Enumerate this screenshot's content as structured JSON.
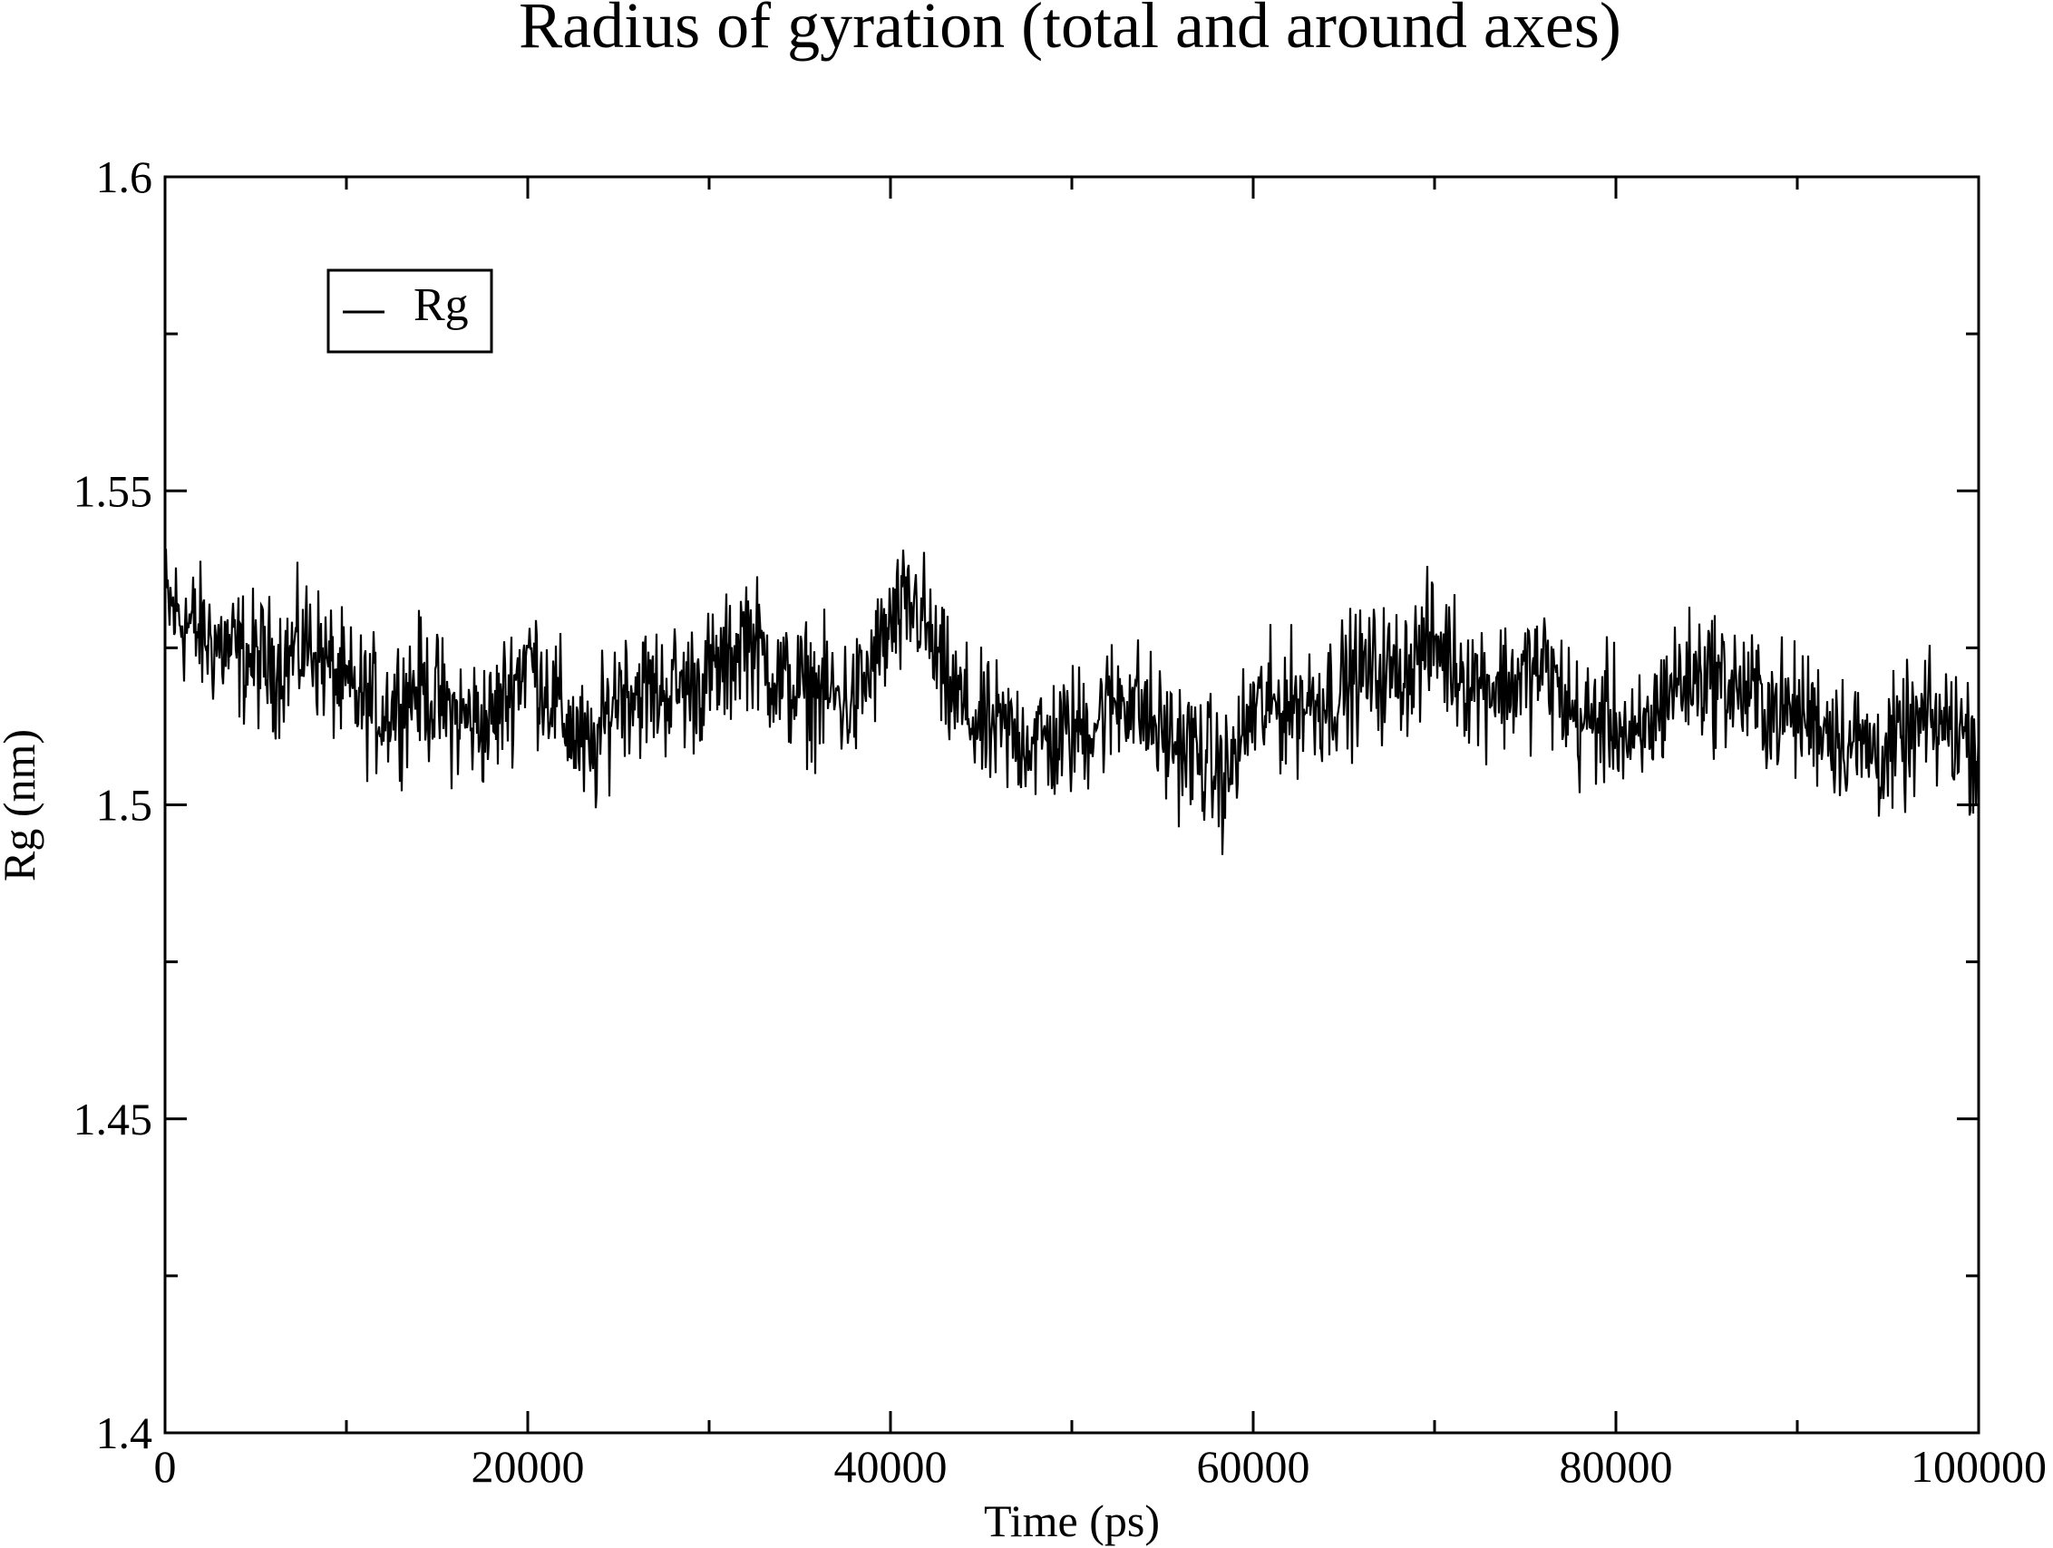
{
  "chart_data": {
    "type": "line",
    "title": "Radius of gyration (total and around axes)",
    "xlabel": "Time (ps)",
    "ylabel": "Rg (nm)",
    "xlim": [
      0,
      100000
    ],
    "ylim": [
      1.4,
      1.6
    ],
    "x_ticks": [
      0,
      20000,
      40000,
      60000,
      80000,
      100000
    ],
    "x_tick_labels": [
      "0",
      "20000",
      "40000",
      "60000",
      "80000",
      "100000"
    ],
    "x_minor_ticks": [
      10000,
      30000,
      50000,
      70000,
      90000
    ],
    "y_ticks": [
      1.4,
      1.45,
      1.5,
      1.55,
      1.6
    ],
    "y_tick_labels": [
      "1.4",
      "1.45",
      "1.5",
      "1.55",
      "1.6"
    ],
    "y_minor_ticks": [
      1.425,
      1.475,
      1.525,
      1.575
    ],
    "grid": false,
    "legend_position": "top-left",
    "series": [
      {
        "name": "Rg",
        "color": "#000000",
        "x": [
          0,
          2000,
          4000,
          6000,
          8000,
          10000,
          12000,
          14000,
          16000,
          18000,
          20000,
          22000,
          23500,
          25000,
          27000,
          29000,
          31000,
          32000,
          34000,
          36000,
          38000,
          40000,
          41500,
          43000,
          45000,
          47000,
          49000,
          51000,
          53000,
          55000,
          57000,
          58500,
          60000,
          62000,
          64000,
          66000,
          68000,
          70000,
          72000,
          74000,
          76000,
          78000,
          80000,
          81000,
          83000,
          85000,
          87000,
          89000,
          91000,
          93000,
          95000,
          97000,
          99000,
          100000
        ],
        "values": [
          1.532,
          1.527,
          1.524,
          1.522,
          1.526,
          1.518,
          1.515,
          1.519,
          1.514,
          1.513,
          1.524,
          1.514,
          1.507,
          1.519,
          1.518,
          1.519,
          1.522,
          1.528,
          1.519,
          1.518,
          1.516,
          1.528,
          1.532,
          1.519,
          1.512,
          1.511,
          1.51,
          1.513,
          1.518,
          1.511,
          1.508,
          1.504,
          1.515,
          1.516,
          1.517,
          1.521,
          1.521,
          1.526,
          1.52,
          1.519,
          1.522,
          1.513,
          1.514,
          1.508,
          1.519,
          1.521,
          1.518,
          1.515,
          1.514,
          1.51,
          1.508,
          1.513,
          1.512,
          1.509
        ]
      }
    ]
  }
}
